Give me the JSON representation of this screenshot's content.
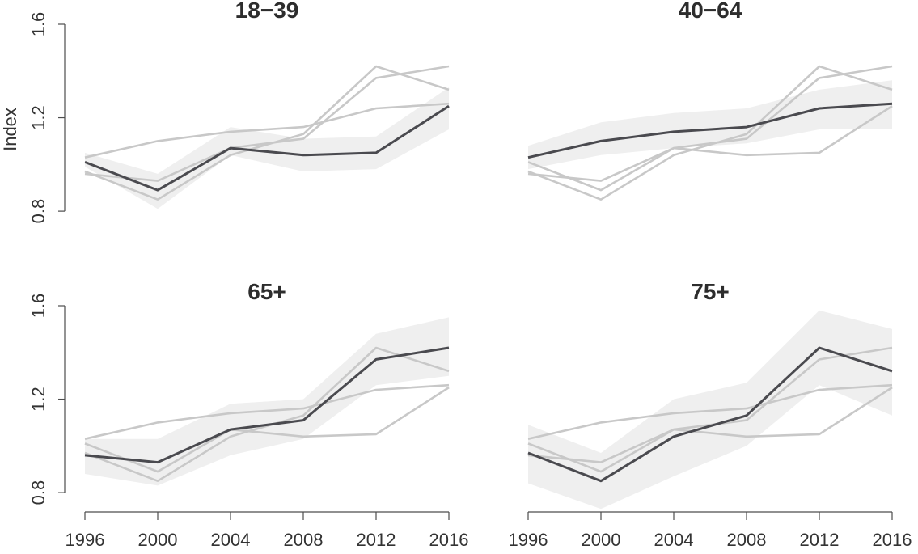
{
  "chart_data": {
    "type": "line",
    "ylabel": "Index",
    "x": [
      1996,
      2000,
      2004,
      2008,
      2012,
      2016
    ],
    "x_ticks": [
      "1996",
      "2000",
      "2004",
      "2008",
      "2012",
      "2016"
    ],
    "y_ticks": [
      "0.8",
      "1.2",
      "1.6"
    ],
    "ylim": [
      0.7,
      1.6
    ],
    "xlim": [
      1996,
      2016
    ],
    "grid": false,
    "legend": "none",
    "colors": {
      "highlight": "#4a4a4f",
      "background_line": "#c8c8c8",
      "band": "#efefef"
    },
    "groups": [
      {
        "name": "18−39",
        "values": [
          1.01,
          0.89,
          1.07,
          1.04,
          1.05,
          1.25
        ],
        "band_lower": [
          0.99,
          0.81,
          1.04,
          0.97,
          0.98,
          1.15
        ],
        "band_upper": [
          1.05,
          0.96,
          1.16,
          1.11,
          1.12,
          1.33
        ]
      },
      {
        "name": "40−64",
        "values": [
          1.03,
          1.1,
          1.14,
          1.16,
          1.24,
          1.26
        ],
        "band_lower": [
          0.98,
          1.04,
          1.07,
          1.09,
          1.15,
          1.15
        ],
        "band_upper": [
          1.08,
          1.18,
          1.22,
          1.24,
          1.32,
          1.36
        ]
      },
      {
        "name": "65+",
        "values": [
          0.96,
          0.93,
          1.07,
          1.11,
          1.37,
          1.42
        ],
        "band_lower": [
          0.88,
          0.83,
          0.96,
          1.03,
          1.26,
          1.3
        ],
        "band_upper": [
          1.03,
          1.03,
          1.18,
          1.2,
          1.48,
          1.55
        ]
      },
      {
        "name": "75+",
        "values": [
          0.97,
          0.85,
          1.04,
          1.13,
          1.42,
          1.32
        ],
        "band_lower": [
          0.84,
          0.73,
          0.87,
          1.0,
          1.26,
          1.13
        ],
        "band_upper": [
          1.09,
          0.97,
          1.2,
          1.27,
          1.58,
          1.5
        ]
      }
    ],
    "panels": [
      {
        "title": "18−39",
        "highlight": 0,
        "show_y_axis": true,
        "show_x_axis": false,
        "show_ylabel": true
      },
      {
        "title": "40−64",
        "highlight": 1,
        "show_y_axis": false,
        "show_x_axis": false,
        "show_ylabel": false
      },
      {
        "title": "65+",
        "highlight": 2,
        "show_y_axis": true,
        "show_x_axis": true,
        "show_ylabel": false
      },
      {
        "title": "75+",
        "highlight": 3,
        "show_y_axis": false,
        "show_x_axis": true,
        "show_ylabel": false
      }
    ]
  }
}
